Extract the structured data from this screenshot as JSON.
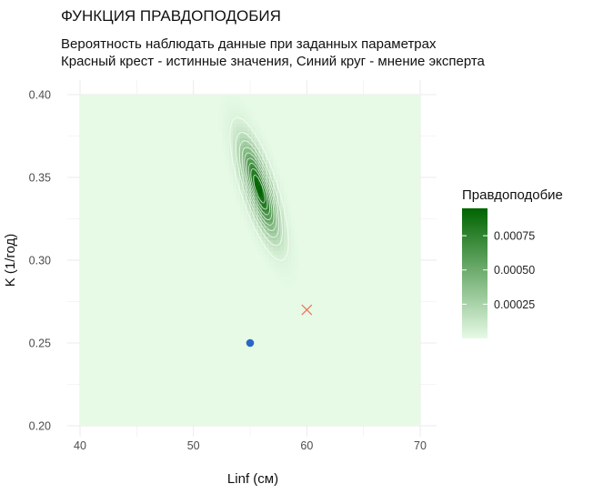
{
  "chart_data": {
    "type": "heatmap",
    "title": "ФУНКЦИЯ ПРАВДОПОДОБИЯ",
    "subtitle_line1": "Вероятность наблюдать данные при заданных параметрах",
    "subtitle_line2": "Красный крест - истинные значения, Синий круг - мнение эксперта",
    "xlabel": "Linf (см)",
    "ylabel": "K (1/год)",
    "xlim": [
      40,
      70
    ],
    "ylim": [
      0.2,
      0.4
    ],
    "x_ticks": [
      40,
      50,
      60,
      70
    ],
    "y_ticks": [
      0.2,
      0.25,
      0.3,
      0.35,
      0.4
    ],
    "x_tick_labels": [
      "40",
      "50",
      "60",
      "70"
    ],
    "y_tick_labels": [
      "0.20",
      "0.25",
      "0.30",
      "0.35",
      "0.40"
    ],
    "grid": true,
    "likelihood_peak": {
      "linf": 55.8,
      "k": 0.343,
      "value": 0.00095
    },
    "contour_levels": [
      5e-05,
      0.00015,
      0.00025,
      0.00035,
      0.00045,
      0.00055,
      0.00065,
      0.00075,
      0.00085
    ],
    "markers": [
      {
        "kind": "cross",
        "label": "истинные значения",
        "linf": 60,
        "k": 0.27,
        "color": "#f0735a"
      },
      {
        "kind": "circle",
        "label": "мнение эксперта",
        "linf": 55,
        "k": 0.25,
        "color": "#2a66c8"
      }
    ],
    "legend": {
      "title": "Правдоподобие",
      "position": "right",
      "labels": [
        "0.00075",
        "0.00050",
        "0.00025"
      ],
      "values": [
        0.00075,
        0.0005,
        0.00025
      ],
      "range": [
        0,
        0.00095
      ],
      "color_low": "#e6fae6",
      "color_high": "#006400"
    },
    "colors": {
      "panel": "#e6fae6",
      "grid": "#ebebeb",
      "contour": "#ffffff"
    }
  }
}
